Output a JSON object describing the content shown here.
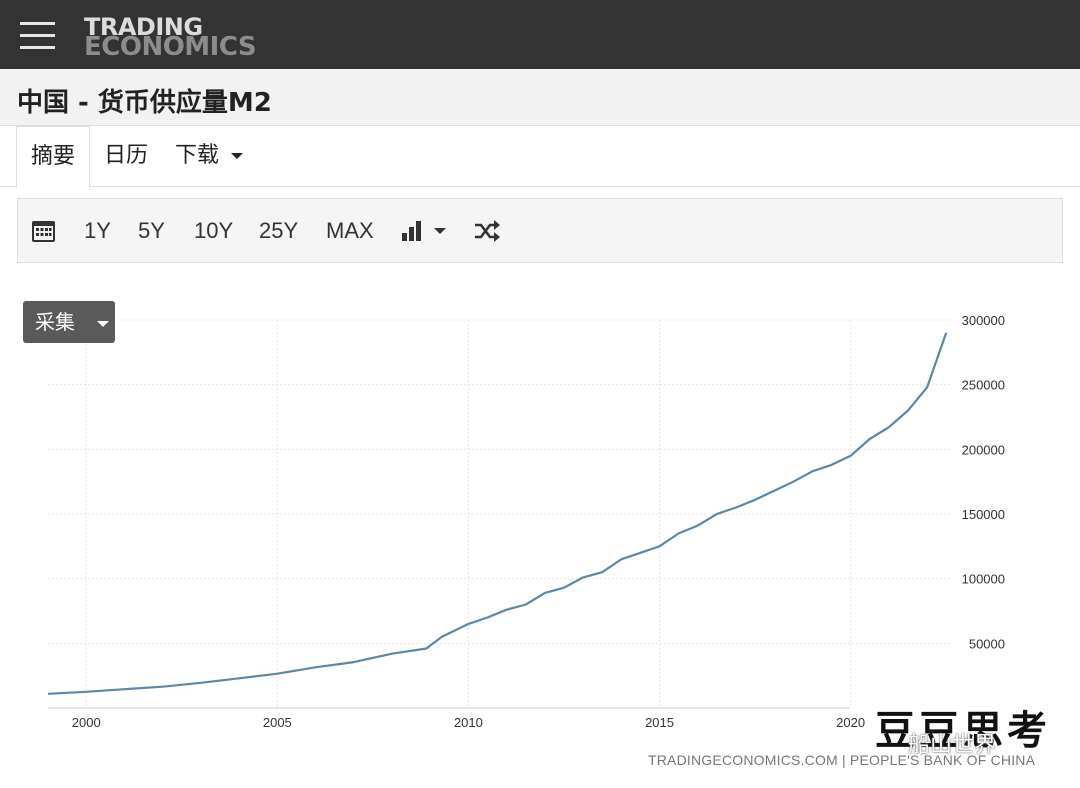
{
  "header": {
    "logo_line1": "TRADING",
    "logo_line2": "ECONOMICS"
  },
  "page_title": "中国 - 货币供应量M2",
  "tabs": [
    {
      "label": "摘要",
      "active": true
    },
    {
      "label": "日历",
      "active": false
    },
    {
      "label": "下载",
      "active": false
    }
  ],
  "toolbar": {
    "ranges": [
      "1Y",
      "5Y",
      "10Y",
      "25Y",
      "MAX"
    ],
    "icons": [
      "calendar-icon",
      "bar-chart-icon",
      "shuffle-icon"
    ]
  },
  "collect_label": "采集",
  "source": "TRADINGECONOMICS.COM | PEOPLE'S BANK OF CHINA",
  "watermark": {
    "title": "豆豆思考",
    "wechat": "船山世界"
  },
  "colors": {
    "line": "#5b87a8",
    "topbar": "#333333"
  },
  "chart_data": {
    "type": "line",
    "title": "",
    "xlabel": "",
    "ylabel": "",
    "xlim": [
      1999,
      2022.6
    ],
    "ylim": [
      0,
      300000
    ],
    "x_ticks": [
      2000,
      2005,
      2010,
      2015,
      2020
    ],
    "y_ticks": [
      50000,
      100000,
      150000,
      200000,
      250000,
      300000
    ],
    "grid": true,
    "series": [
      {
        "x": [
          1999.0,
          2000.0,
          2001.0,
          2002.0,
          2003.0,
          2004.0,
          2005.0,
          2006.0,
          2007.0,
          2008.0,
          2008.9,
          2009.3,
          2010.0,
          2010.5,
          2011.0,
          2011.5,
          2012.0,
          2012.5,
          2013.0,
          2013.5,
          2014.0,
          2014.5,
          2015.0,
          2015.5,
          2016.0,
          2016.5,
          2017.0,
          2017.5,
          2018.0,
          2018.5,
          2019.0,
          2019.5,
          2020.0,
          2020.5,
          2021.0,
          2021.5,
          2022.0,
          2022.5
        ],
        "y": [
          11000,
          12500,
          14500,
          16500,
          19500,
          23000,
          26500,
          31500,
          35500,
          42000,
          46000,
          55000,
          65000,
          70000,
          76000,
          80000,
          89000,
          93000,
          101000,
          105000,
          115000,
          120000,
          125000,
          135000,
          141000,
          150000,
          155000,
          161000,
          168000,
          175000,
          183000,
          188000,
          195000,
          208000,
          217000,
          230000,
          248000,
          290000
        ]
      }
    ]
  }
}
